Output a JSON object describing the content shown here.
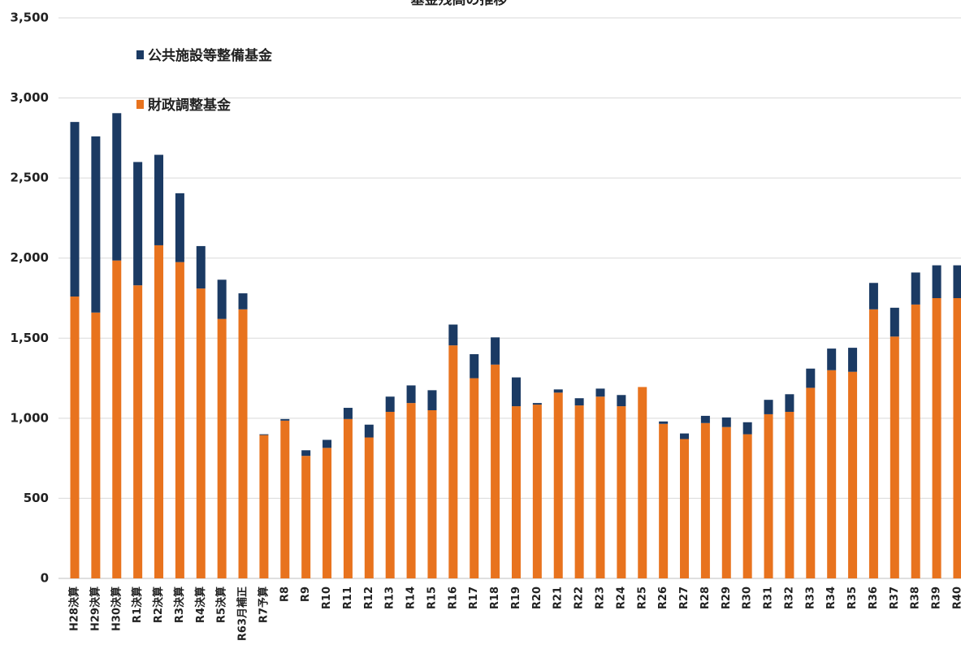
{
  "chart_data": {
    "type": "bar",
    "stacked": true,
    "title": "基金残高の推移",
    "xlabel": "",
    "ylabel": "",
    "ylim": [
      0,
      3500
    ],
    "yticks": [
      0,
      500,
      1000,
      1500,
      2000,
      2500,
      3000,
      3500
    ],
    "ytick_labels": [
      "0",
      "500",
      "1,000",
      "1,500",
      "2,000",
      "2,500",
      "3,000",
      "3,500"
    ],
    "grid": true,
    "legend_position": "top-left",
    "categories": [
      "H28決算",
      "H29決算",
      "H30決算",
      "R1決算",
      "R2決算",
      "R3決算",
      "R4決算",
      "R5決算",
      "R63月補正",
      "R7予算",
      "R8",
      "R9",
      "R10",
      "R11",
      "R12",
      "R13",
      "R14",
      "R15",
      "R16",
      "R17",
      "R18",
      "R19",
      "R20",
      "R21",
      "R22",
      "R23",
      "R24",
      "R25",
      "R26",
      "R27",
      "R28",
      "R29",
      "R30",
      "R31",
      "R32",
      "R33",
      "R34",
      "R35",
      "R36",
      "R37",
      "R38",
      "R39",
      "R40"
    ],
    "series": [
      {
        "name": "財政調整基金",
        "color": "#E8731E",
        "values": [
          1760,
          1660,
          1985,
          1830,
          2080,
          1975,
          1810,
          1620,
          1680,
          895,
          985,
          765,
          815,
          995,
          880,
          1040,
          1095,
          1050,
          1455,
          1250,
          1335,
          1075,
          1085,
          1160,
          1080,
          1135,
          1075,
          1195,
          965,
          870,
          970,
          945,
          900,
          1025,
          1040,
          1190,
          1300,
          1290,
          1680,
          1510,
          1710,
          1750,
          1750
        ]
      },
      {
        "name": "公共施設等整備基金",
        "color": "#1B3A63",
        "values": [
          1090,
          1100,
          920,
          770,
          565,
          430,
          265,
          245,
          100,
          5,
          10,
          35,
          50,
          70,
          80,
          95,
          110,
          125,
          130,
          150,
          170,
          180,
          10,
          20,
          45,
          50,
          70,
          0,
          15,
          35,
          45,
          60,
          75,
          90,
          110,
          120,
          135,
          150,
          165,
          180,
          200,
          205,
          205
        ]
      }
    ]
  }
}
